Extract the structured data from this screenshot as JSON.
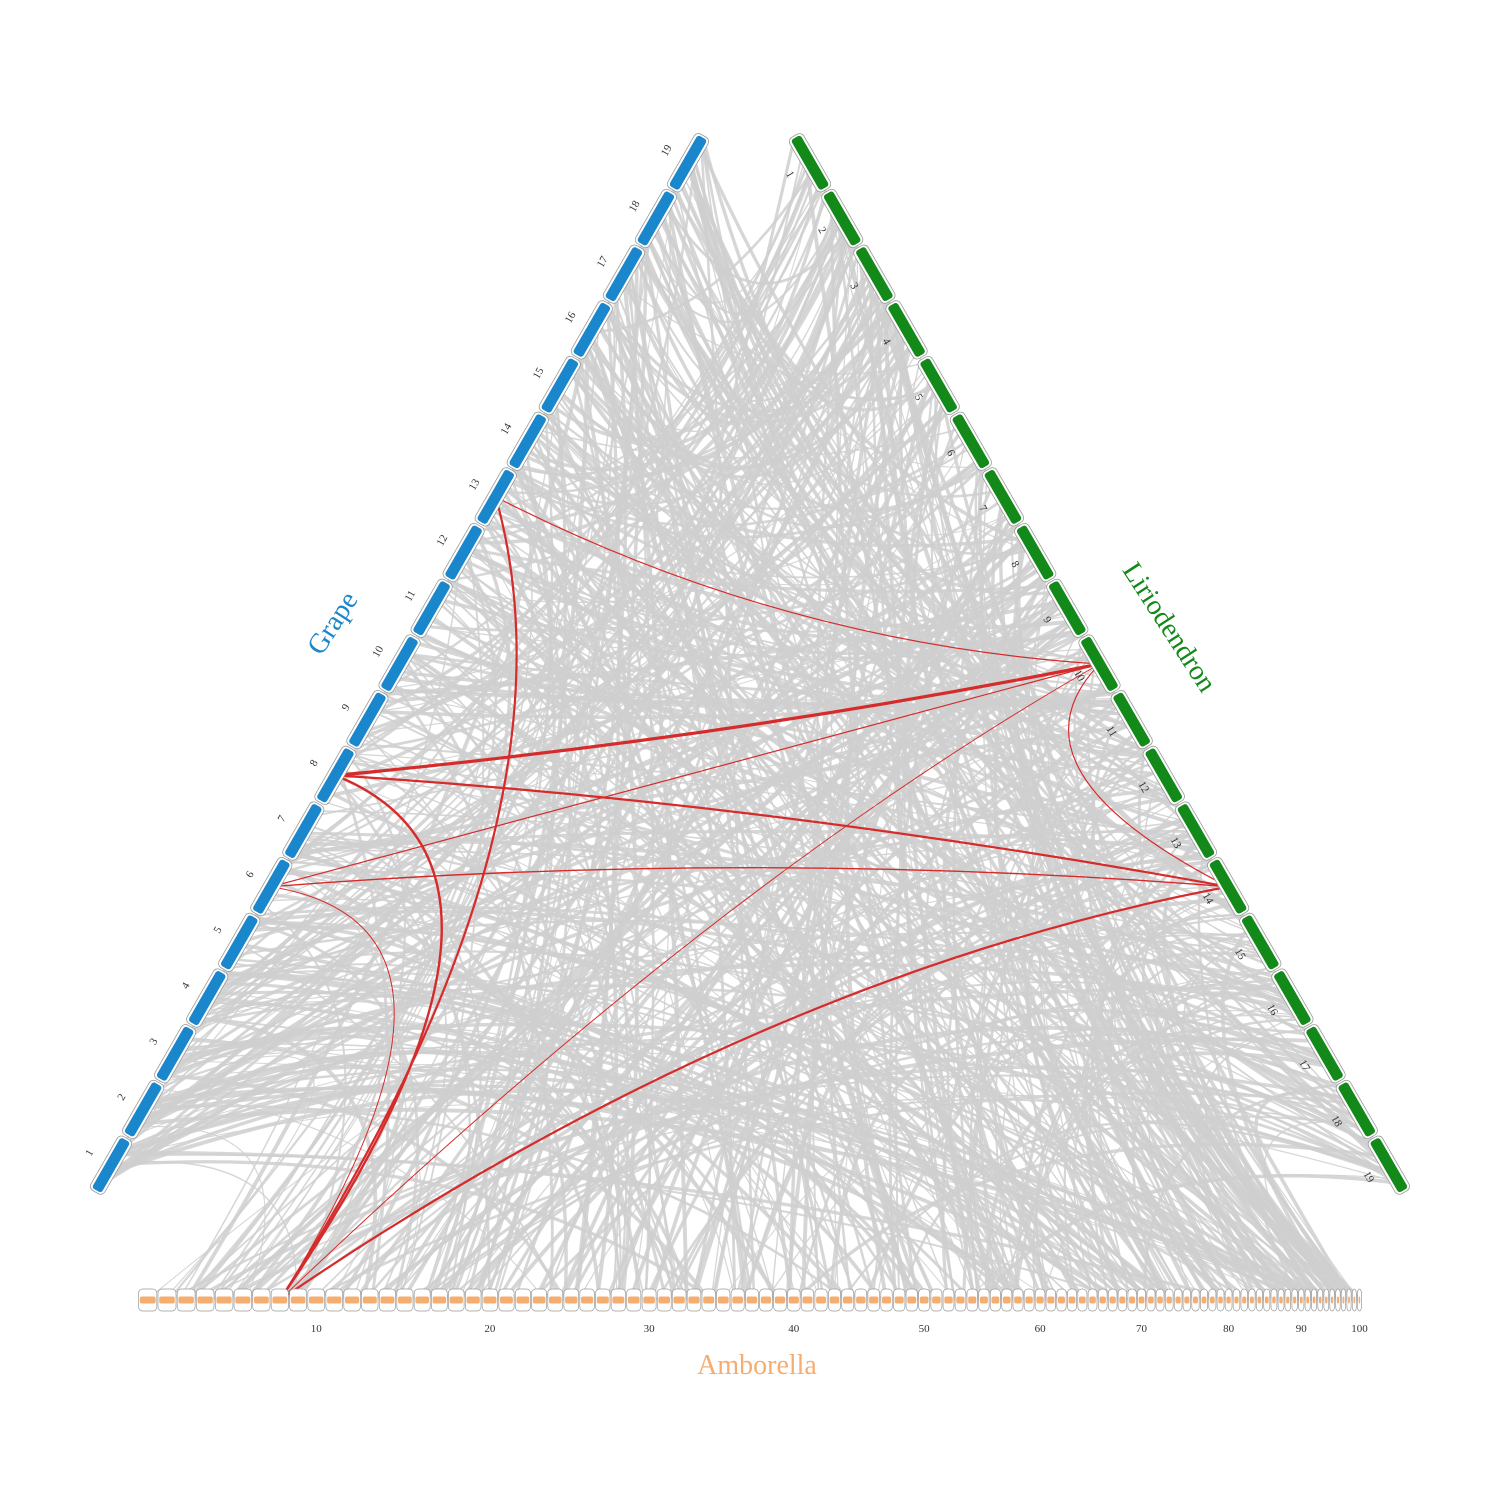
{
  "figure": {
    "species": [
      {
        "id": "grape",
        "name": "Grape",
        "color": "#1a86cc",
        "chromosomes": [
          "1",
          "2",
          "3",
          "4",
          "5",
          "6",
          "7",
          "8",
          "9",
          "10",
          "11",
          "12",
          "13",
          "14",
          "15",
          "16",
          "17",
          "18",
          "19"
        ]
      },
      {
        "id": "liriodendron",
        "name": "Liriodendron",
        "color": "#13891a",
        "chromosomes": [
          "1",
          "2",
          "3",
          "4",
          "5",
          "6",
          "7",
          "8",
          "9",
          "10",
          "11",
          "12",
          "13",
          "14",
          "15",
          "16",
          "17",
          "18",
          "19"
        ]
      },
      {
        "id": "amborella",
        "name": "Amborella",
        "color": "#f5ad70",
        "scaffold_count": 100,
        "tick_labels": [
          "10",
          "20",
          "30",
          "40",
          "50",
          "60",
          "70",
          "80",
          "90",
          "100"
        ]
      }
    ],
    "background_link_color": "#cfcfcf",
    "highlight_link_color": "#d62b2b",
    "highlight_links": [
      {
        "from": "grape:13",
        "to": "liriodendron:10"
      },
      {
        "from": "grape:13",
        "to": "amborella:8"
      },
      {
        "from": "grape:8",
        "to": "liriodendron:10"
      },
      {
        "from": "grape:8",
        "to": "liriodendron:14"
      },
      {
        "from": "grape:8",
        "to": "amborella:8"
      },
      {
        "from": "grape:6",
        "to": "liriodendron:10"
      },
      {
        "from": "grape:6",
        "to": "liriodendron:14"
      },
      {
        "from": "grape:6",
        "to": "amborella:8"
      },
      {
        "from": "liriodendron:10",
        "to": "liriodendron:14"
      },
      {
        "from": "liriodendron:10",
        "to": "amborella:8"
      },
      {
        "from": "liriodendron:14",
        "to": "amborella:8"
      }
    ]
  }
}
